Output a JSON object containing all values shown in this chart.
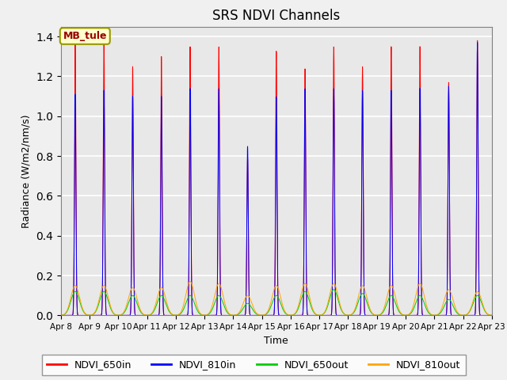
{
  "title": "SRS NDVI Channels",
  "xlabel": "Time",
  "ylabel": "Radiance (W/m2/nm/s)",
  "ylim": [
    0,
    1.45
  ],
  "annotation": "MB_tule",
  "legend": [
    "NDVI_650in",
    "NDVI_810in",
    "NDVI_650out",
    "NDVI_810out"
  ],
  "colors": [
    "red",
    "blue",
    "#00cc00",
    "orange"
  ],
  "xtick_labels": [
    "Apr 8",
    "Apr 9",
    "Apr 10",
    "Apr 11",
    "Apr 12",
    "Apr 13",
    "Apr 14",
    "Apr 15",
    "Apr 16",
    "Apr 17",
    "Apr 18",
    "Apr 19",
    "Apr 20",
    "Apr 21",
    "Apr 22",
    "Apr 23"
  ],
  "ax_facecolor": "#e8e8e8",
  "fig_facecolor": "#f0f0f0",
  "title_fontsize": 12,
  "peak_650in": [
    1.36,
    1.38,
    1.25,
    1.3,
    1.35,
    1.35,
    0.79,
    1.33,
    1.24,
    1.35,
    1.25,
    1.35,
    1.35,
    1.17,
    1.38
  ],
  "peak_810in": [
    1.11,
    1.13,
    1.1,
    1.1,
    1.14,
    1.14,
    0.85,
    1.1,
    1.14,
    1.14,
    1.13,
    1.13,
    1.14,
    1.15,
    1.37
  ],
  "peak_650out": [
    0.12,
    0.12,
    0.1,
    0.1,
    0.1,
    0.1,
    0.06,
    0.1,
    0.12,
    0.13,
    0.11,
    0.1,
    0.1,
    0.08,
    0.1
  ],
  "peak_810out": [
    0.15,
    0.15,
    0.14,
    0.14,
    0.17,
    0.16,
    0.1,
    0.15,
    0.16,
    0.16,
    0.15,
    0.15,
    0.16,
    0.13,
    0.12
  ],
  "sigma_in": 0.025,
  "sigma_out": 0.15
}
